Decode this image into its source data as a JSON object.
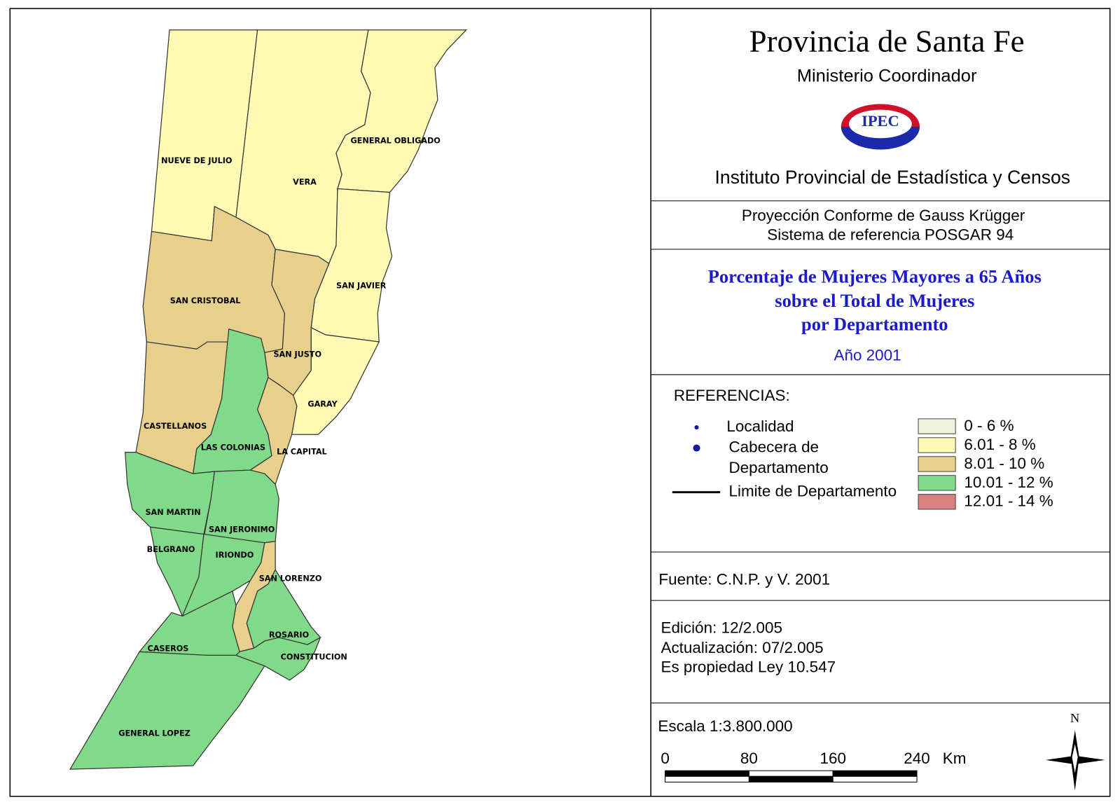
{
  "header": {
    "title": "Provincia de Santa Fe",
    "subtitle": "Ministerio Coordinador",
    "logo": "IPEC",
    "institute": "Instituto Provincial de Estadística y Censos"
  },
  "projection": [
    "Proyección Conforme de Gauss Krügger",
    "Sistema de referencia POSGAR 94"
  ],
  "map_title": {
    "lines": [
      "Porcentaje de Mujeres Mayores a 65 Años",
      "sobre el Total de Mujeres",
      "por Departamento"
    ],
    "year": "Año 2001"
  },
  "references": {
    "heading": "REFERENCIAS:",
    "locality": "Localidad",
    "capital": [
      "Cabecera de",
      "Departamento"
    ],
    "boundary": "Limite de Departamento"
  },
  "legend": [
    {
      "label": "0 - 6 %",
      "color": "#eef3de"
    },
    {
      "label": "6.01 - 8 %",
      "color": "#fffbb4"
    },
    {
      "label": "8.01 - 10 %",
      "color": "#e6d08c"
    },
    {
      "label": "10.01 - 12 %",
      "color": "#80da8a"
    },
    {
      "label": "12.01 - 14 %",
      "color": "#d98080"
    }
  ],
  "departments": [
    {
      "name": "NUEVE DE JULIO",
      "class": 1
    },
    {
      "name": "VERA",
      "class": 1
    },
    {
      "name": "GENERAL OBLIGADO",
      "class": 1
    },
    {
      "name": "SAN JAVIER",
      "class": 1
    },
    {
      "name": "GARAY",
      "class": 1
    },
    {
      "name": "SAN CRISTOBAL",
      "class": 2
    },
    {
      "name": "SAN JUSTO",
      "class": 2
    },
    {
      "name": "CASTELLANOS",
      "class": 2
    },
    {
      "name": "LAS COLONIAS",
      "class": 3
    },
    {
      "name": "LA CAPITAL",
      "class": 2
    },
    {
      "name": "SAN MARTIN",
      "class": 3
    },
    {
      "name": "SAN JERONIMO",
      "class": 3
    },
    {
      "name": "BELGRANO",
      "class": 3
    },
    {
      "name": "IRIONDO",
      "class": 3
    },
    {
      "name": "SAN LORENZO",
      "class": 2
    },
    {
      "name": "ROSARIO",
      "class": 3
    },
    {
      "name": "CONSTITUCION",
      "class": 3
    },
    {
      "name": "CASEROS",
      "class": 3
    },
    {
      "name": "GENERAL LOPEZ",
      "class": 3
    }
  ],
  "source": "Fuente:  C.N.P. y V. 2001",
  "edition": [
    "Edición:  12/2.005",
    "Actualización:  07/2.005",
    "Es propiedad Ley 10.547"
  ],
  "scale": {
    "text": "Escala 1:3.800.000",
    "ticks": [
      0,
      80,
      160,
      240
    ],
    "unit": "Km"
  },
  "north": "N"
}
